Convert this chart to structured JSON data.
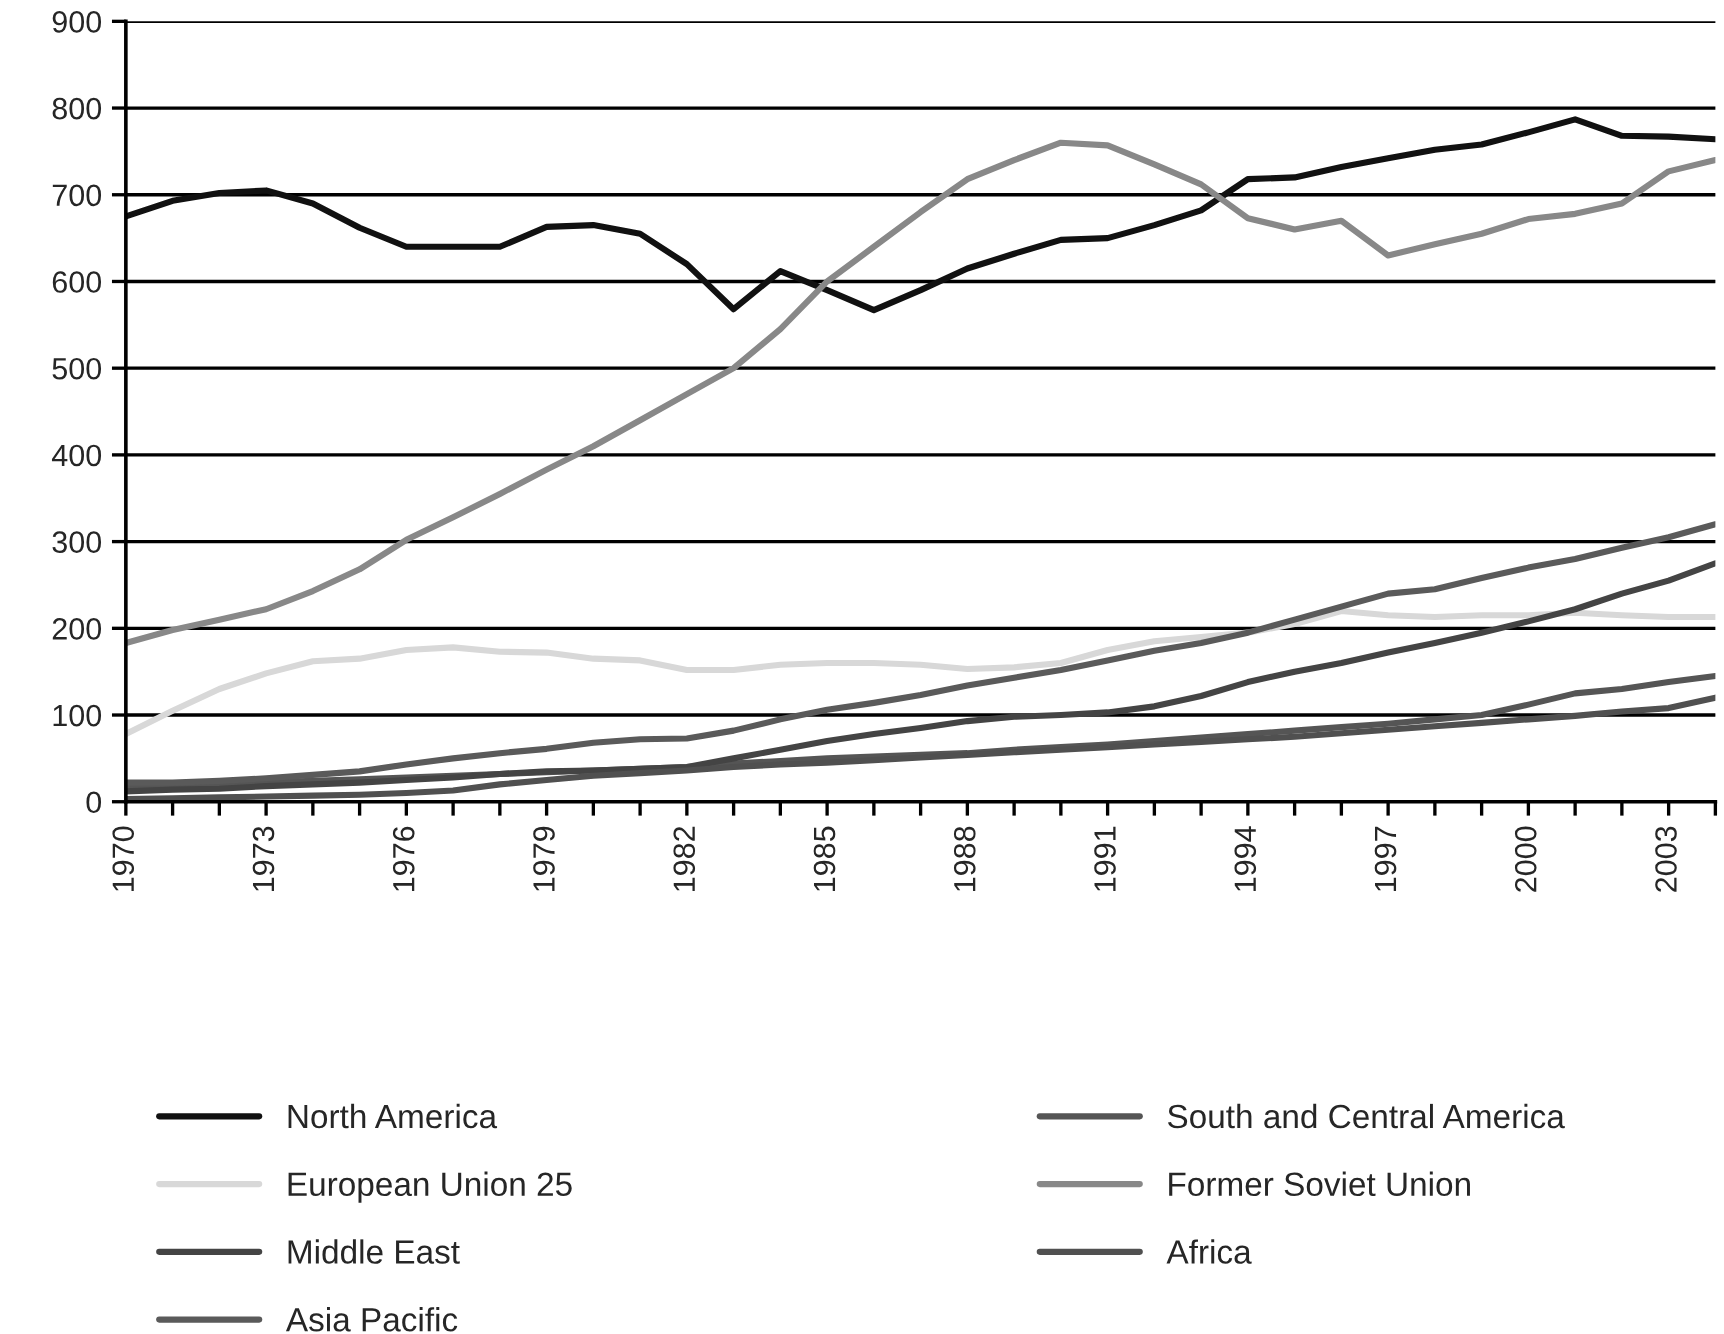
{
  "chart_data": {
    "type": "line",
    "x": [
      1970,
      1971,
      1972,
      1973,
      1974,
      1975,
      1976,
      1977,
      1978,
      1979,
      1980,
      1981,
      1982,
      1983,
      1984,
      1985,
      1986,
      1987,
      1988,
      1989,
      1990,
      1991,
      1992,
      1993,
      1994,
      1995,
      1996,
      1997,
      1998,
      1999,
      2000,
      2001,
      2002,
      2003,
      2004
    ],
    "xlim": [
      1970,
      2004
    ],
    "xticks": [
      1970,
      {
        "value": 1971,
        "label": null
      },
      {
        "value": 1972,
        "label": null
      },
      1973,
      {
        "value": 1974,
        "label": null
      },
      {
        "value": 1975,
        "label": null
      },
      1976,
      {
        "value": 1977,
        "label": null
      },
      {
        "value": 1978,
        "label": null
      },
      1979,
      {
        "value": 1980,
        "label": null
      },
      {
        "value": 1981,
        "label": null
      },
      1982,
      {
        "value": 1983,
        "label": null
      },
      {
        "value": 1984,
        "label": null
      },
      1985,
      {
        "value": 1986,
        "label": null
      },
      {
        "value": 1987,
        "label": null
      },
      1988,
      {
        "value": 1989,
        "label": null
      },
      {
        "value": 1990,
        "label": null
      },
      1991,
      {
        "value": 1992,
        "label": null
      },
      {
        "value": 1993,
        "label": null
      },
      1994,
      {
        "value": 1995,
        "label": null
      },
      {
        "value": 1996,
        "label": null
      },
      1997,
      {
        "value": 1998,
        "label": null
      },
      {
        "value": 1999,
        "label": null
      },
      2000,
      {
        "value": 2001,
        "label": null
      },
      {
        "value": 2002,
        "label": null
      },
      2003,
      {
        "value": 2004,
        "label": null
      }
    ],
    "ylim": [
      0,
      900
    ],
    "yticks": [
      0,
      100,
      200,
      300,
      400,
      500,
      600,
      700,
      800,
      900
    ],
    "grid": "y",
    "legend": "bottom",
    "marker": "none",
    "line_style": "solid",
    "series": [
      {
        "name": "North America",
        "color": "#111111",
        "values": [
          675,
          693,
          702,
          705,
          690,
          662,
          640,
          640,
          640,
          663,
          665,
          655,
          620,
          568,
          612,
          590,
          567,
          590,
          615,
          632,
          648,
          650,
          665,
          682,
          718,
          720,
          732,
          742,
          752,
          758,
          772,
          787,
          768,
          767,
          764
        ]
      },
      {
        "name": "South and Central America",
        "color": "#555555",
        "values": [
          18,
          19,
          20,
          22,
          24,
          26,
          28,
          30,
          32,
          34,
          36,
          38,
          40,
          44,
          47,
          50,
          52,
          54,
          56,
          60,
          63,
          66,
          70,
          74,
          78,
          82,
          86,
          90,
          95,
          100,
          112,
          125,
          130,
          138,
          145
        ]
      },
      {
        "name": "European Union 25",
        "color": "#d8d8d8",
        "values": [
          78,
          105,
          130,
          148,
          162,
          165,
          175,
          178,
          173,
          172,
          165,
          163,
          152,
          152,
          158,
          160,
          160,
          158,
          153,
          155,
          160,
          175,
          185,
          190,
          195,
          205,
          220,
          215,
          213,
          215,
          215,
          218,
          215,
          213,
          213
        ]
      },
      {
        "name": "Former Soviet Union",
        "color": "#888888",
        "values": [
          183,
          198,
          210,
          222,
          243,
          268,
          302,
          328,
          355,
          383,
          410,
          440,
          470,
          500,
          545,
          600,
          640,
          680,
          718,
          740,
          760,
          757,
          735,
          712,
          673,
          660,
          670,
          630,
          643,
          655,
          672,
          678,
          690,
          727,
          740
        ]
      },
      {
        "name": "Middle East",
        "color": "#444444",
        "values": [
          12,
          14,
          15,
          18,
          20,
          22,
          25,
          28,
          32,
          35,
          36,
          38,
          40,
          50,
          60,
          70,
          78,
          85,
          93,
          98,
          100,
          103,
          110,
          122,
          138,
          150,
          160,
          172,
          183,
          195,
          208,
          222,
          240,
          255,
          275
        ]
      },
      {
        "name": "Africa",
        "color": "#505050",
        "values": [
          3,
          4,
          5,
          6,
          7,
          8,
          10,
          13,
          20,
          25,
          30,
          33,
          36,
          40,
          43,
          45,
          48,
          51,
          54,
          57,
          60,
          63,
          66,
          69,
          72,
          75,
          79,
          83,
          87,
          91,
          95,
          99,
          104,
          108,
          120
        ]
      },
      {
        "name": "Asia Pacific",
        "color": "#5a5a5a",
        "values": [
          22,
          22,
          24,
          27,
          31,
          35,
          43,
          50,
          56,
          61,
          68,
          72,
          73,
          82,
          95,
          106,
          114,
          123,
          134,
          143,
          152,
          163,
          174,
          183,
          195,
          210,
          225,
          240,
          245,
          258,
          270,
          280,
          293,
          305,
          320
        ]
      }
    ]
  }
}
